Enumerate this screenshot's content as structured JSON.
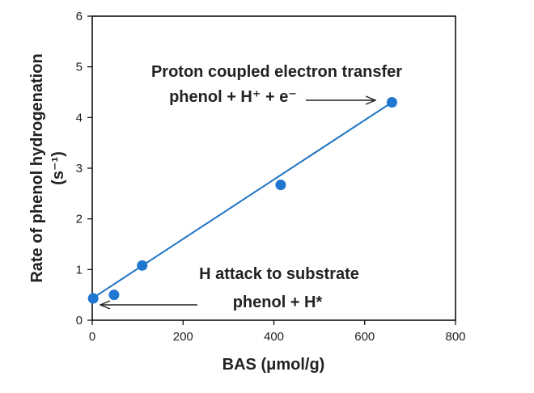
{
  "chart_data": {
    "type": "scatter",
    "title": "",
    "xlabel": "BAS (μmol/g)",
    "ylabel_line1": "Rate of phenol hydrogenation",
    "ylabel_line2": "(s⁻¹)",
    "xlim": [
      0,
      800
    ],
    "ylim": [
      0,
      6
    ],
    "x_ticks": [
      0,
      200,
      400,
      600,
      800
    ],
    "y_ticks": [
      0,
      1,
      2,
      3,
      4,
      5,
      6
    ],
    "grid": false,
    "legend": "none",
    "points": [
      {
        "x": 2,
        "y": 0.43
      },
      {
        "x": 48,
        "y": 0.5
      },
      {
        "x": 110,
        "y": 1.08
      },
      {
        "x": 415,
        "y": 2.67
      },
      {
        "x": 660,
        "y": 4.3
      }
    ],
    "fit_line": {
      "x": [
        0,
        660
      ],
      "y": [
        0.43,
        4.3
      ]
    },
    "point_color": "#1f77d0",
    "line_color": "#1f73c4",
    "annotations": {
      "top_line1": "Proton coupled electron transfer",
      "top_line2": "phenol + H⁺ + e⁻",
      "bottom_line1": "H attack to substrate",
      "bottom_line2": "phenol + H*"
    }
  }
}
